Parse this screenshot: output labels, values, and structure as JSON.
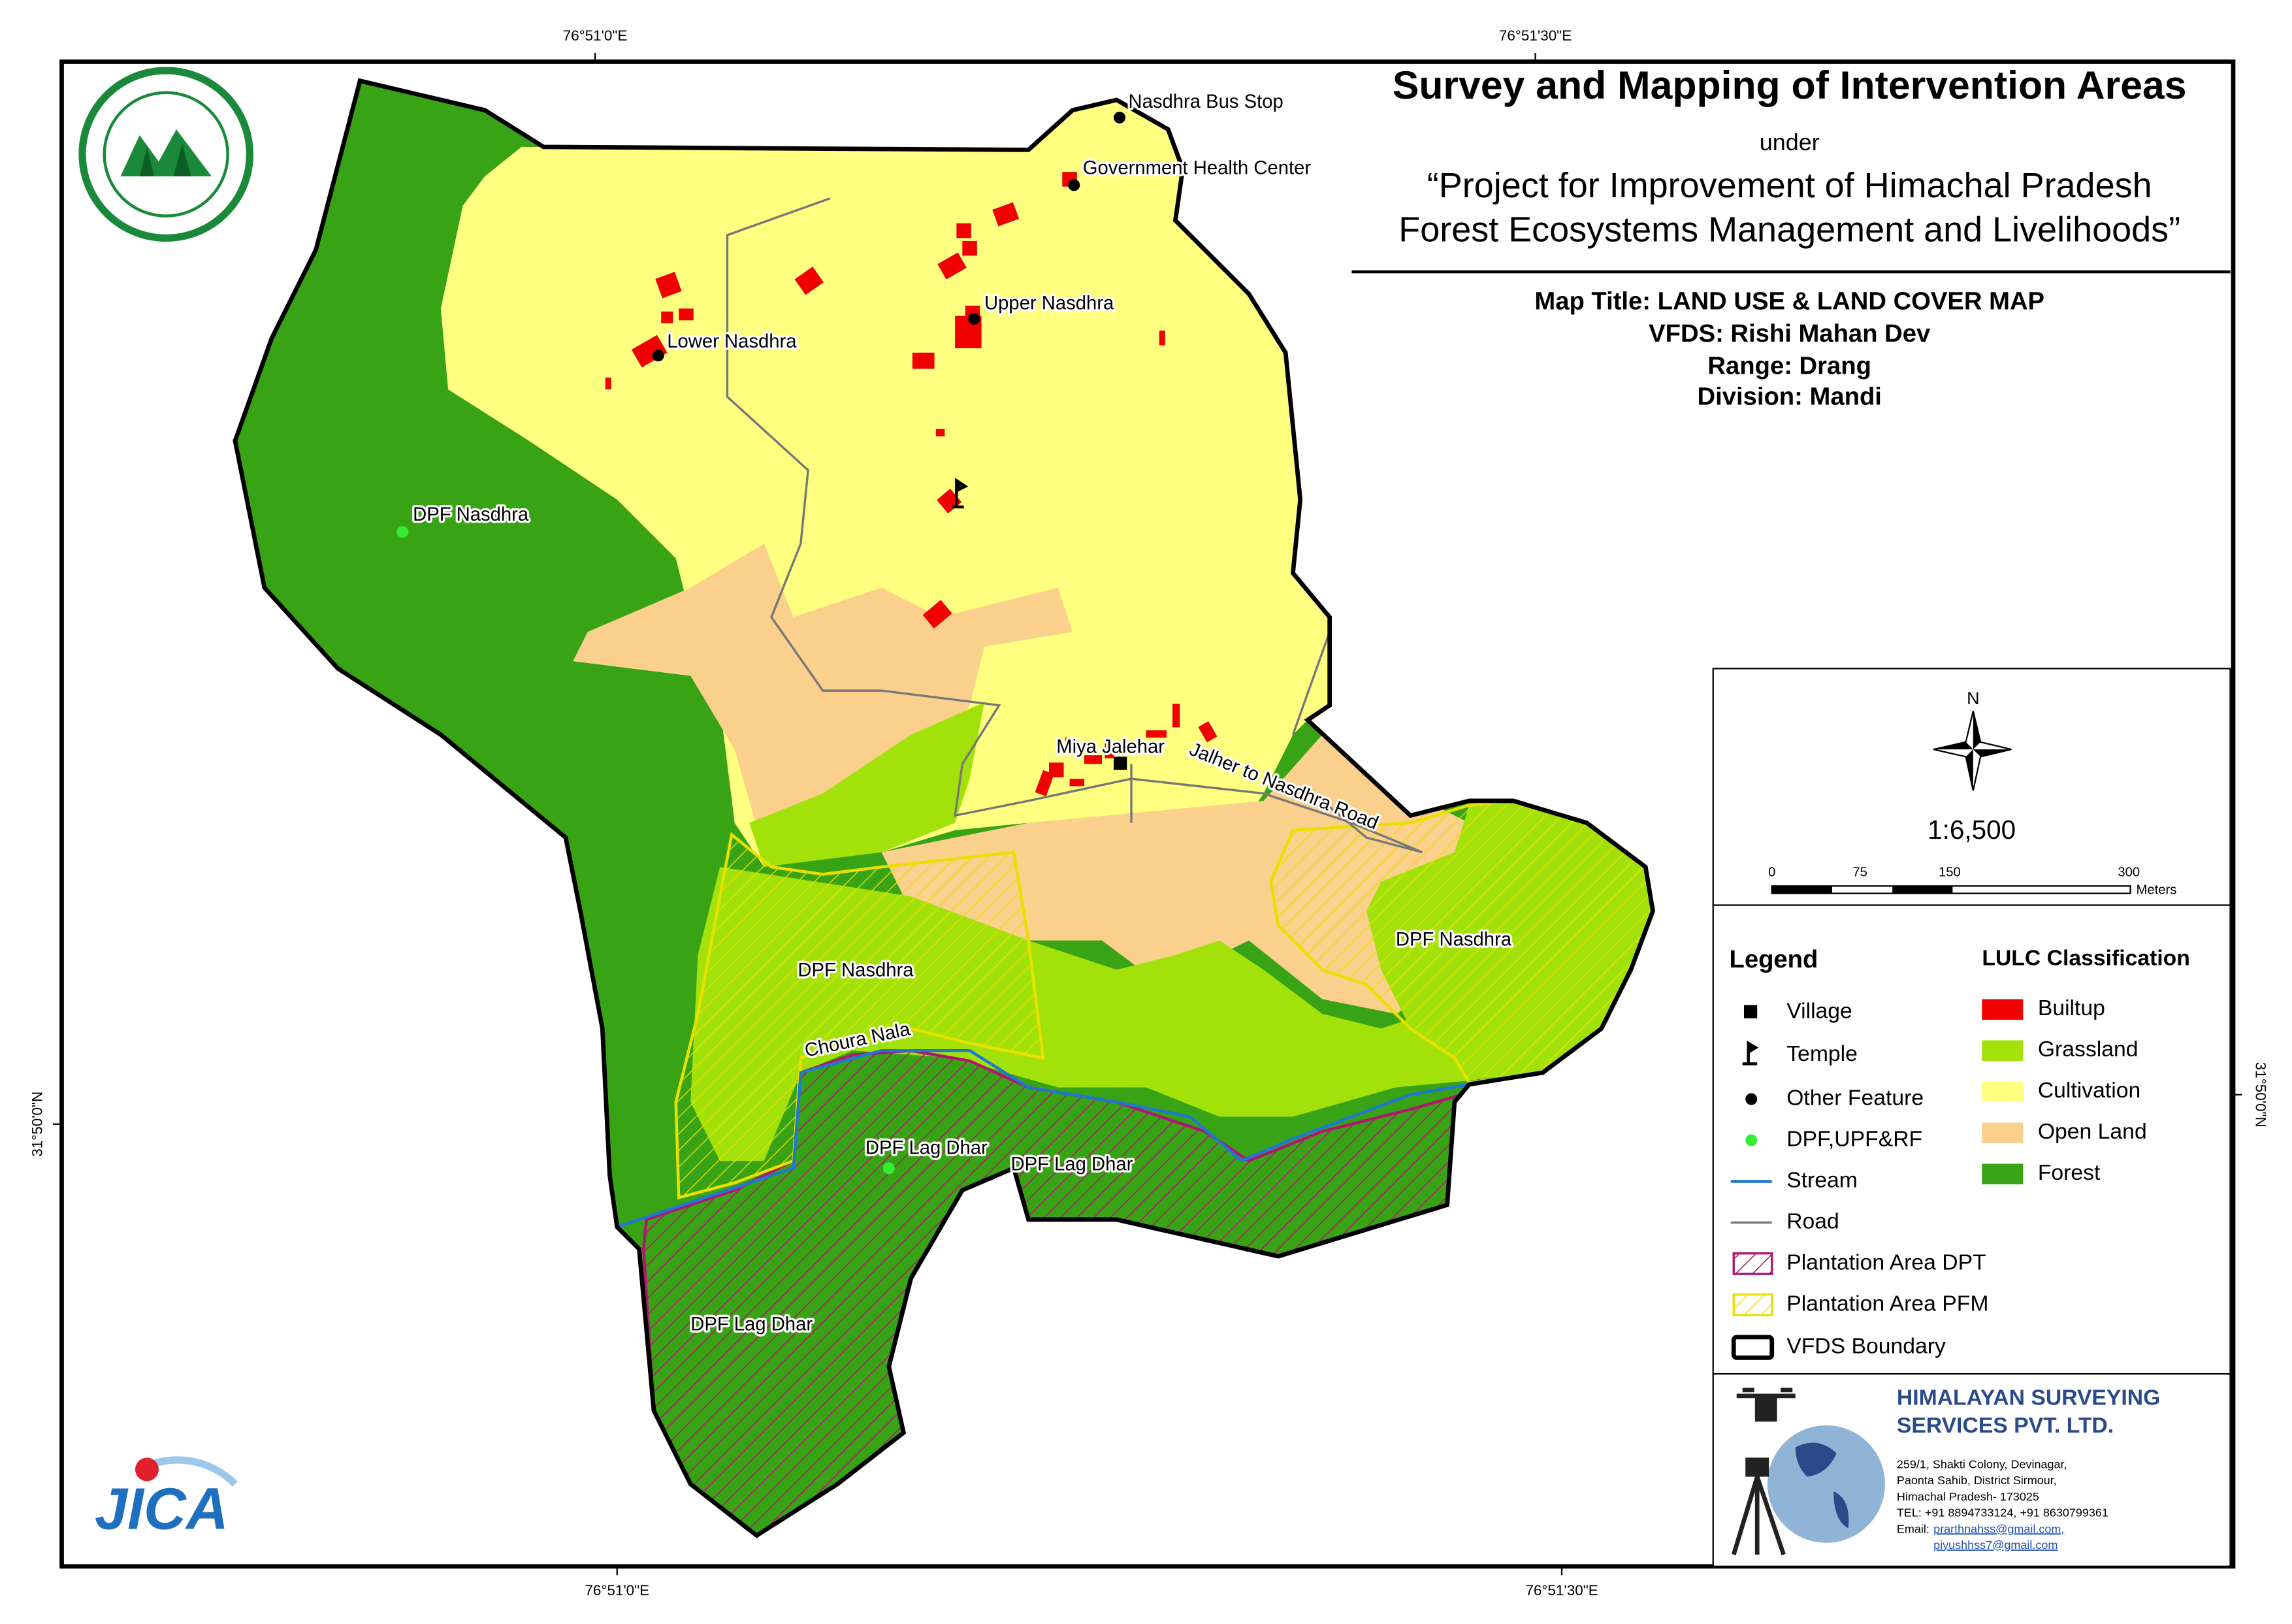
{
  "header": {
    "title": "Survey and Mapping of Intervention Areas",
    "under": "under",
    "project_line1": "“Project for Improvement of Himachal Pradesh",
    "project_line2": "Forest Ecosystems Management and Livelihoods”"
  },
  "map_info": [
    "Map Title: LAND USE & LAND COVER MAP",
    "VFDS: Rishi Mahan Dev",
    "Range: Drang",
    "Division: Mandi"
  ],
  "coordinates": {
    "top": [
      "76°51'0\"E",
      "76°51'30\"E"
    ],
    "bottom": [
      "76°51'0\"E",
      "76°51'30\"E"
    ],
    "left": "31°50'0\"N",
    "right": "31°50'0\"N"
  },
  "map_labels": [
    "Nasdhra Bus Stop",
    "Government Health Center",
    "Upper Nasdhra",
    "Lower Nasdhra",
    "DPF Nasdhra",
    "Miya Jalehar",
    "Jalher to Nasdhra Road",
    "DPF Nasdhra",
    "DPF Nasdhra",
    "Choura Nala",
    "DPF Lag Dhar",
    "DPF Lag Dhar",
    "DPF Lag Dhar"
  ],
  "north": "N",
  "scale": {
    "ratio": "1:6,500",
    "ticks": [
      "0",
      "75",
      "150",
      "300"
    ],
    "unit": "Meters"
  },
  "legend": {
    "title": "Legend",
    "items": [
      "Village",
      "Temple",
      "Other Feature",
      "DPF,UPF&RF",
      "Stream",
      "Road",
      "Plantation Area DPT",
      "Plantation Area PFM",
      "VFDS Boundary"
    ]
  },
  "lulc": {
    "title": "LULC Classification",
    "items": [
      "Builtup",
      "Grassland",
      "Cultivation",
      "Open Land",
      "Forest"
    ]
  },
  "company": {
    "name_line1": "HIMALAYAN SURVEYING",
    "name_line2": "SERVICES PVT. LTD.",
    "address": [
      "259/1, Shakti Colony, Devinagar,",
      "Paonta Sahib, District Sirmour,",
      "Himachal Pradesh- 173025",
      "TEL: +91 8894733124, +91 8630799361"
    ],
    "email_label": "Email:",
    "emails": [
      "prarthnahss@gmail.com,",
      "piyushhss7@gmail.com"
    ]
  },
  "jica": "JICA"
}
